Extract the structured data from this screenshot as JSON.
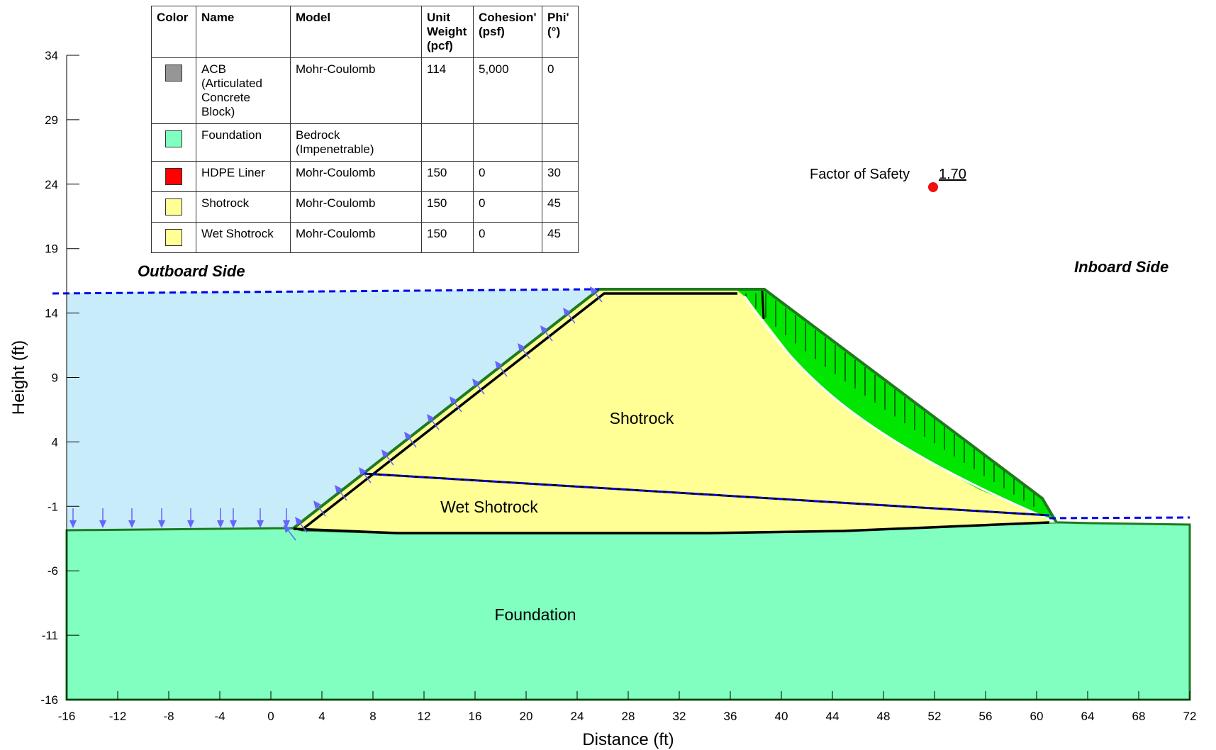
{
  "axes": {
    "xlabel": "Distance (ft)",
    "ylabel": "Height (ft)",
    "xlim": [
      -16,
      72
    ],
    "ylim": [
      -16,
      34
    ],
    "xticks": [
      "-16",
      "-12",
      "-8",
      "-4",
      "0",
      "4",
      "8",
      "12",
      "16",
      "20",
      "24",
      "28",
      "32",
      "36",
      "40",
      "44",
      "48",
      "52",
      "56",
      "60",
      "64",
      "68",
      "72"
    ],
    "yticks": [
      "34",
      "29",
      "24",
      "19",
      "14",
      "9",
      "4",
      "-1",
      "-6",
      "-11",
      "-16"
    ]
  },
  "legend": {
    "headers": [
      "Color",
      "Name",
      "Model",
      "Unit Weight (pcf)",
      "Cohesion' (psf)",
      "Phi' (°)"
    ],
    "rows": [
      {
        "color": "#969696",
        "name": "ACB (Articulated Concrete Block)",
        "model": "Mohr-Coulomb",
        "unit_weight": "114",
        "cohesion": "5,000",
        "phi": "0"
      },
      {
        "color": "#80ffc0",
        "name": "Foundation",
        "model": "Bedrock (Impenetrable)",
        "unit_weight": "",
        "cohesion": "",
        "phi": ""
      },
      {
        "color": "#ff0000",
        "name": "HDPE Liner",
        "model": "Mohr-Coulomb",
        "unit_weight": "150",
        "cohesion": "0",
        "phi": "30"
      },
      {
        "color": "#ffff96",
        "name": "Shotrock",
        "model": "Mohr-Coulomb",
        "unit_weight": "150",
        "cohesion": "0",
        "phi": "45"
      },
      {
        "color": "#ffff96",
        "name": "Wet Shotrock",
        "model": "Mohr-Coulomb",
        "unit_weight": "150",
        "cohesion": "0",
        "phi": "45"
      }
    ]
  },
  "regions": {
    "shotrock": "Shotrock",
    "wet_shotrock": "Wet Shotrock",
    "foundation": "Foundation"
  },
  "sides": {
    "outboard": "Outboard Side",
    "inboard": "Inboard Side"
  },
  "factor_of_safety": {
    "label": "Factor of Safety",
    "value": "1.70"
  },
  "colors": {
    "water": "#c8ecfa",
    "foundation": "#80ffc0",
    "shotrock": "#ffff96",
    "acb": "#00e600",
    "outline": "#1e7a1e",
    "piezometric": "#0000ee",
    "load_arrow": "#6464ff",
    "slip_center": "#ee1111"
  }
}
